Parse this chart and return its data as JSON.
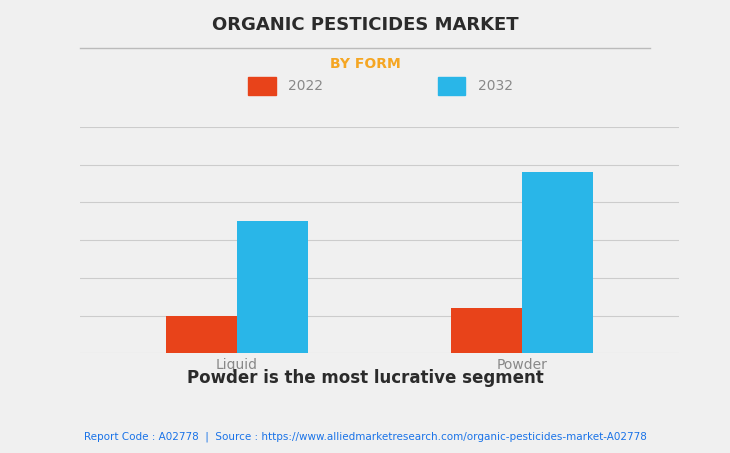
{
  "title": "ORGANIC PESTICIDES MARKET",
  "subtitle": "BY FORM",
  "subtitle_color": "#f5a623",
  "categories": [
    "Liquid",
    "Powder"
  ],
  "series": [
    {
      "label": "2022",
      "values": [
        1.0,
        1.2
      ],
      "color": "#e8431a"
    },
    {
      "label": "2032",
      "values": [
        3.5,
        4.8
      ],
      "color": "#29b6e8"
    }
  ],
  "bar_width": 0.25,
  "ylim": [
    0,
    6
  ],
  "grid_color": "#cccccc",
  "bg_color": "#f0f0f0",
  "plot_bg_color": "#f0f0f0",
  "title_fontsize": 13,
  "subtitle_fontsize": 10,
  "tick_fontsize": 10,
  "legend_fontsize": 10,
  "footer_text": "Report Code : A02778  |  Source : https://www.alliedmarketresearch.com/organic-pesticides-market-A02778",
  "footer_color": "#1a73e8",
  "caption": "Powder is the most lucrative segment",
  "caption_fontsize": 12,
  "title_color": "#2b2b2b",
  "caption_color": "#2b2b2b",
  "tick_color": "#888888"
}
